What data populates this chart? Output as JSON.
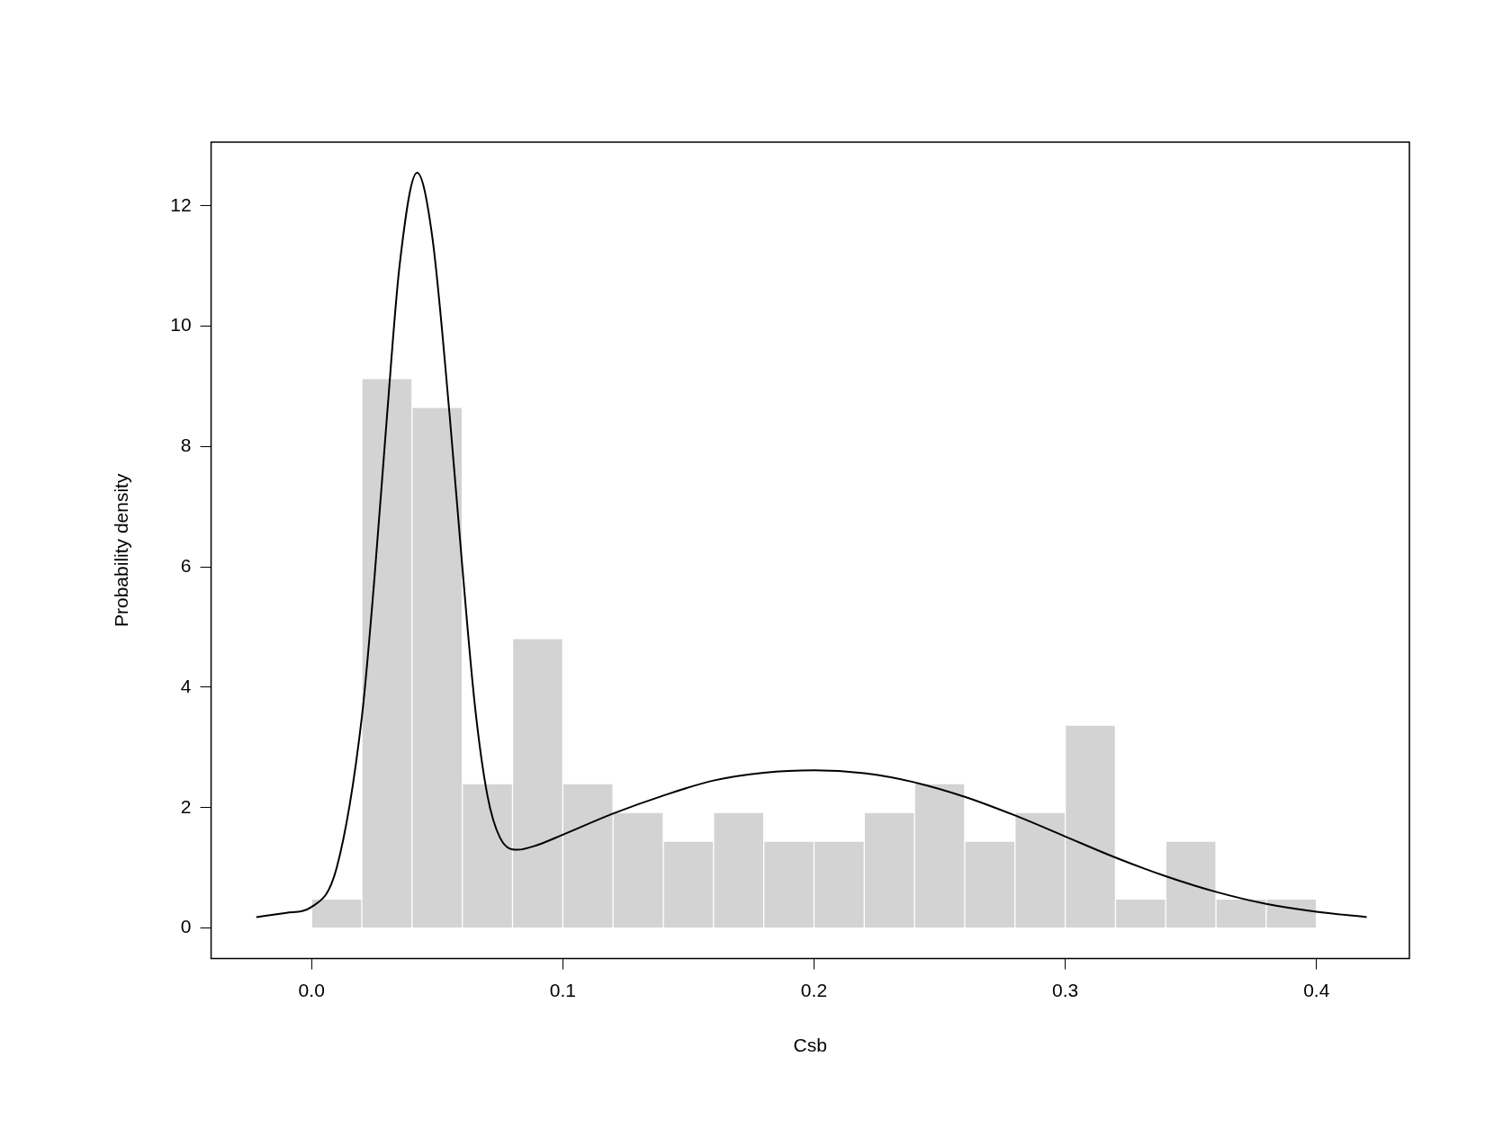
{
  "chart_data": {
    "type": "histogram",
    "xlabel": "Csb",
    "ylabel": "Probability density",
    "bins": [
      0,
      0.02,
      0.04,
      0.06,
      0.08,
      0.1,
      0.12,
      0.14,
      0.16,
      0.18,
      0.2,
      0.22,
      0.24,
      0.26,
      0.28,
      0.3,
      0.32,
      0.34,
      0.36,
      0.38,
      0.4
    ],
    "values": [
      0.48,
      9.13,
      8.65,
      2.4,
      4.81,
      2.4,
      1.92,
      1.44,
      1.92,
      1.44,
      1.44,
      1.92,
      2.4,
      1.44,
      1.92,
      3.37,
      0.48,
      1.44,
      0.48,
      0.48
    ],
    "color": "#d3d3d3",
    "series": [
      {
        "type": "line",
        "color": "#000000",
        "x": [
          -0.022,
          -0.01,
          0,
          0.01,
          0.02,
          0.025,
          0.03,
          0.035,
          0.042,
          0.048,
          0.055,
          0.06,
          0.065,
          0.07,
          0.075,
          0.082,
          0.09,
          0.1,
          0.12,
          0.14,
          0.16,
          0.18,
          0.2,
          0.22,
          0.24,
          0.26,
          0.28,
          0.3,
          0.32,
          0.34,
          0.36,
          0.38,
          0.4,
          0.42
        ],
        "values": [
          0.18,
          0.25,
          0.35,
          1.0,
          3.5,
          5.8,
          8.5,
          11.0,
          12.55,
          11.5,
          8.5,
          6.0,
          3.7,
          2.2,
          1.5,
          1.3,
          1.38,
          1.55,
          1.9,
          2.2,
          2.45,
          2.58,
          2.62,
          2.57,
          2.42,
          2.18,
          1.87,
          1.52,
          1.17,
          0.86,
          0.6,
          0.4,
          0.27,
          0.18
        ]
      }
    ],
    "xlim": [
      -0.04,
      0.437
    ],
    "ylim": [
      -0.51,
      13.06
    ],
    "xticks": [
      {
        "value": 0,
        "label": "0.0"
      },
      0.1,
      0.2,
      0.3,
      0.4
    ],
    "yticks": [
      0,
      2,
      4,
      6,
      8,
      10,
      12
    ],
    "grid": false,
    "legend": false,
    "marker": "none",
    "line_style": "solid"
  }
}
